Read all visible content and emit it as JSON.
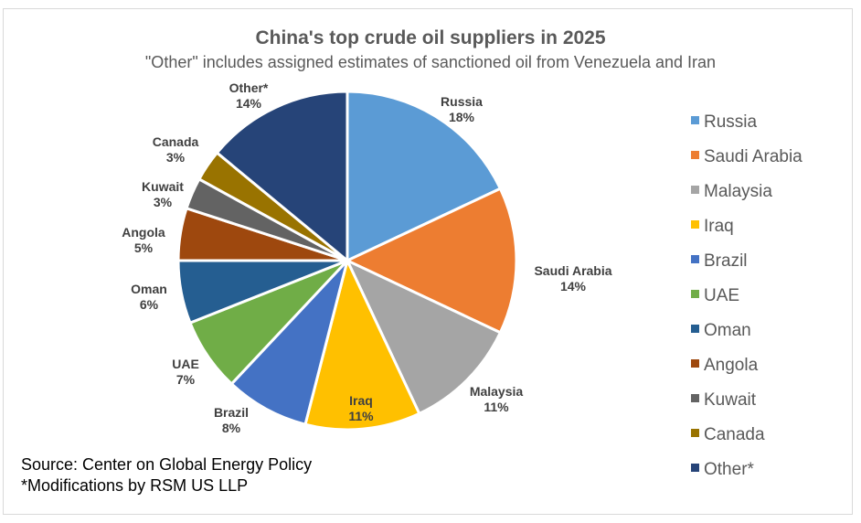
{
  "chart_data": {
    "type": "pie",
    "title": "China's top crude oil suppliers in 2025",
    "subtitle": "\"Other\" includes assigned estimates of sanctioned oil from Venezuela and Iran",
    "legend_position": "right",
    "slices": [
      {
        "label": "Russia",
        "value": 18,
        "display": "18%",
        "color": "#5B9BD5"
      },
      {
        "label": "Saudi Arabia",
        "value": 14,
        "display": "14%",
        "color": "#ED7D31"
      },
      {
        "label": "Malaysia",
        "value": 11,
        "display": "11%",
        "color": "#A5A5A5"
      },
      {
        "label": "Iraq",
        "value": 11,
        "display": "11%",
        "color": "#FFC000"
      },
      {
        "label": "Brazil",
        "value": 8,
        "display": "8%",
        "color": "#4472C4"
      },
      {
        "label": "UAE",
        "value": 7,
        "display": "7%",
        "color": "#70AD47"
      },
      {
        "label": "Oman",
        "value": 6,
        "display": "6%",
        "color": "#255E91"
      },
      {
        "label": "Angola",
        "value": 5,
        "display": "5%",
        "color": "#9E480E"
      },
      {
        "label": "Kuwait",
        "value": 3,
        "display": "3%",
        "color": "#636363"
      },
      {
        "label": "Canada",
        "value": 3,
        "display": "3%",
        "color": "#997300"
      },
      {
        "label": "Other*",
        "value": 14,
        "display": "14%",
        "color": "#264478"
      }
    ]
  },
  "footnotes": {
    "source": "Source: Center on Global Energy Policy",
    "modifications": "*Modifications by RSM US LLP"
  }
}
